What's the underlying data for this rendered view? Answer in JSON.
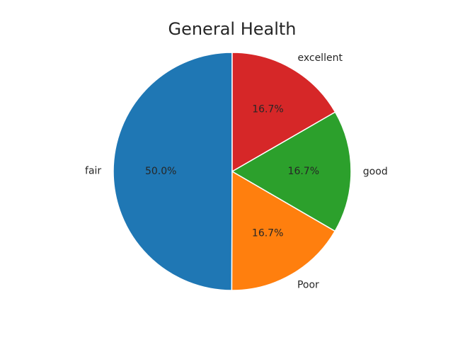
{
  "chart_data": {
    "type": "pie",
    "title": "General Health",
    "start_angle_deg": 90,
    "counterclock": true,
    "slices": [
      {
        "label": "fair",
        "value": 50.0,
        "pct_label": "50.0%",
        "color": "#1f77b4"
      },
      {
        "label": "Poor",
        "value": 16.7,
        "pct_label": "16.7%",
        "color": "#ff7f0e"
      },
      {
        "label": "good",
        "value": 16.7,
        "pct_label": "16.7%",
        "color": "#2ca02c"
      },
      {
        "label": "excellent",
        "value": 16.7,
        "pct_label": "16.7%",
        "color": "#d62728"
      }
    ]
  }
}
